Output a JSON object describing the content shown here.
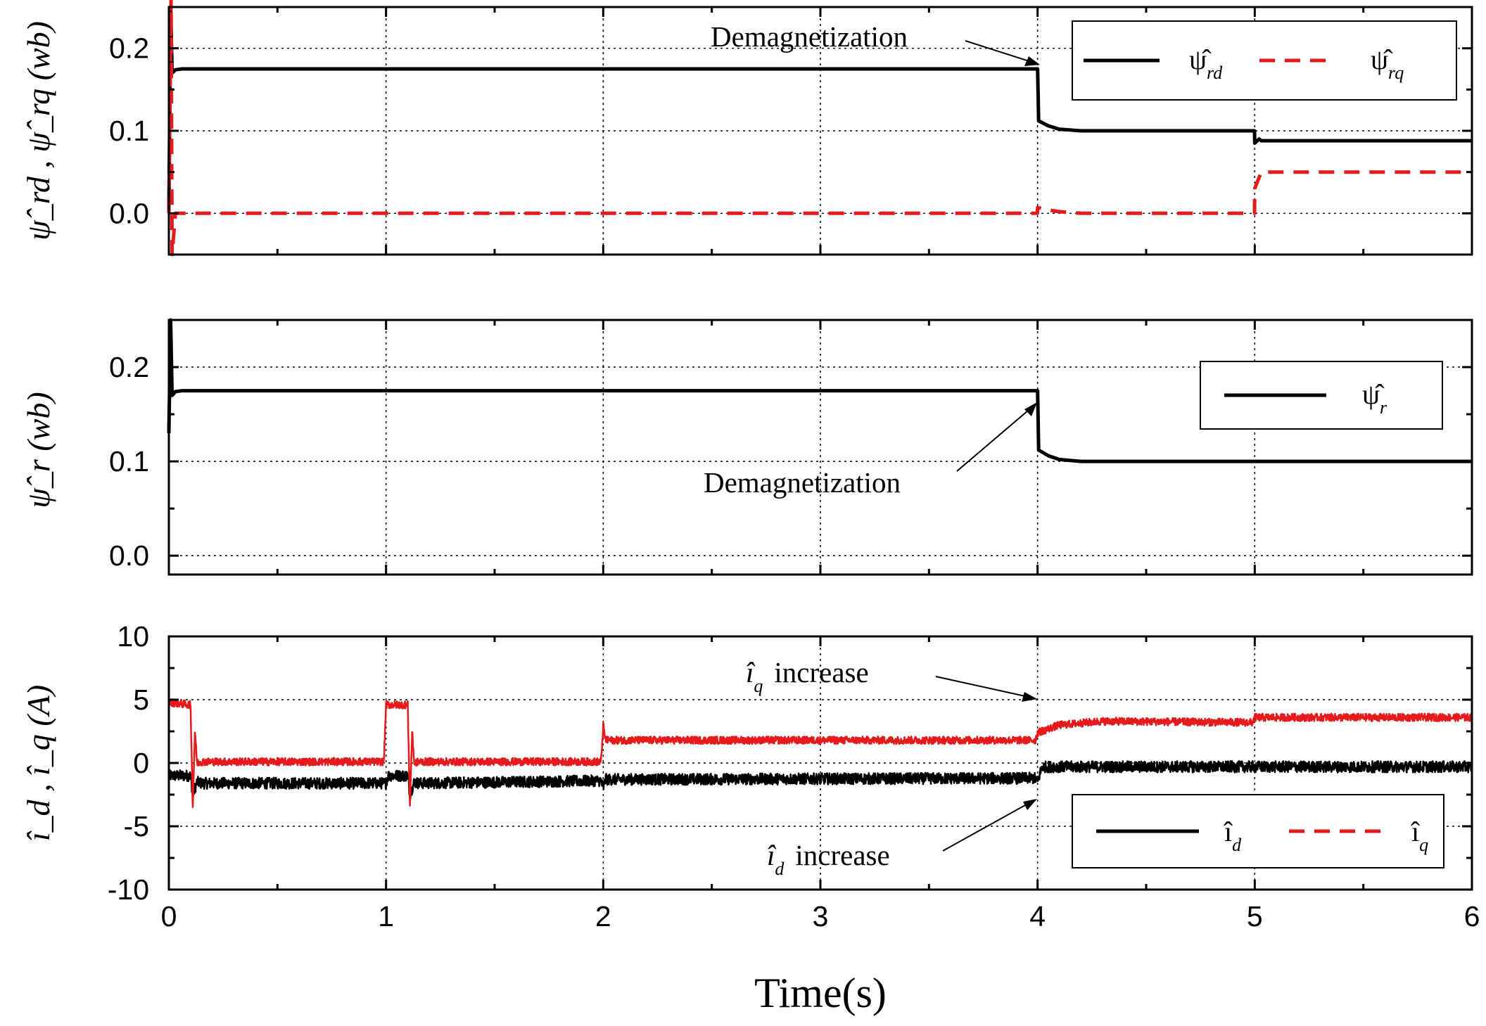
{
  "colors": {
    "black_series": "#000000",
    "red_series": "#e41a1c",
    "grid": "#000000"
  },
  "x_title": "Time(s)",
  "chart_data": [
    {
      "type": "line",
      "ylabel": "ψ̂_rd , ψ̂_rq (wb)",
      "xlim": [
        0,
        6
      ],
      "ylim": [
        -0.05,
        0.25
      ],
      "xticks": [
        0,
        1,
        2,
        3,
        4,
        5,
        6
      ],
      "yticks": [
        0.0,
        0.1,
        0.2
      ],
      "ytick_labels": [
        "0.0",
        "0.1",
        "0.2"
      ],
      "annotation": "Demagnetization",
      "legend_placement": "top-right",
      "series": [
        {
          "name": "ψ̂_rd",
          "legend_sym": "ψ̂",
          "legend_sub": "rd",
          "style": "solid",
          "color": "#000000",
          "x": [
            0,
            0.008,
            0.015,
            0.03,
            0.06,
            3.999,
            4.0,
            4.005,
            4.05,
            4.1,
            4.2,
            4.999,
            5.0,
            5.02,
            5.03,
            6.0
          ],
          "y": [
            0.0,
            0.25,
            0.17,
            0.174,
            0.175,
            0.175,
            0.175,
            0.112,
            0.106,
            0.102,
            0.1,
            0.1,
            0.085,
            0.09,
            0.088,
            0.088
          ]
        },
        {
          "name": "ψ̂_rq",
          "legend_sym": "ψ̂",
          "legend_sub": "rq",
          "style": "dashed",
          "color": "#e41a1c",
          "x": [
            0,
            0.01,
            0.015,
            0.03,
            0.06,
            3.999,
            4.0,
            4.05,
            4.1,
            4.2,
            4.999,
            5.0,
            5.03,
            6.0
          ],
          "y": [
            0.0,
            0.26,
            -0.05,
            0.0,
            0.0,
            0.0,
            0.007,
            0.004,
            0.002,
            0.0,
            0.0,
            0.03,
            0.05,
            0.05
          ]
        }
      ]
    },
    {
      "type": "line",
      "ylabel": "ψ̂_r (wb)",
      "xlim": [
        0,
        6
      ],
      "ylim": [
        -0.02,
        0.25
      ],
      "xticks": [
        0,
        1,
        2,
        3,
        4,
        5,
        6
      ],
      "yticks": [
        0.0,
        0.1,
        0.2
      ],
      "ytick_labels": [
        "0.0",
        "0.1",
        "0.2"
      ],
      "annotation": "Demagnetization",
      "legend_placement": "right",
      "series": [
        {
          "name": "ψ̂_r",
          "legend_sym": "ψ̂",
          "legend_sub": "r",
          "style": "solid",
          "color": "#000000",
          "x": [
            0,
            0.008,
            0.015,
            0.03,
            0.06,
            3.999,
            4.0,
            4.005,
            4.05,
            4.1,
            4.2,
            6.0
          ],
          "y": [
            0.13,
            0.25,
            0.17,
            0.174,
            0.175,
            0.175,
            0.175,
            0.112,
            0.106,
            0.102,
            0.1,
            0.1
          ]
        }
      ]
    },
    {
      "type": "line",
      "ylabel": "î_d , î_q (A)",
      "xlim": [
        0,
        6
      ],
      "ylim": [
        -10,
        10
      ],
      "xticks": [
        0,
        1,
        2,
        3,
        4,
        5,
        6
      ],
      "xtick_labels": [
        "0",
        "1",
        "2",
        "3",
        "4",
        "5",
        "6"
      ],
      "yticks": [
        -10,
        -5,
        0,
        5,
        10
      ],
      "ytick_labels": [
        "-10",
        "-5",
        "0",
        "5",
        "10"
      ],
      "annotations": [
        {
          "sym": "î",
          "sub": "q",
          "text": "increase"
        },
        {
          "sym": "î",
          "sub": "d",
          "text": "increase"
        }
      ],
      "legend_placement": "bottom-right",
      "series": [
        {
          "name": "î_d",
          "legend_sym": "î",
          "legend_sub": "d",
          "style": "solid",
          "color": "#000000",
          "x": [
            0,
            0.1,
            0.11,
            0.13,
            0.15,
            1.0,
            1.01,
            1.1,
            1.11,
            1.13,
            1.15,
            1.99,
            2.0,
            2.01,
            3.99,
            4.0,
            4.02,
            6.0
          ],
          "y": [
            -1.0,
            -1.0,
            -2.5,
            -1.5,
            -1.6,
            -1.6,
            -1.0,
            -1.0,
            -2.5,
            -1.5,
            -1.6,
            -1.4,
            -2.0,
            -1.3,
            -1.2,
            -1.5,
            -0.3,
            -0.3
          ],
          "noise": 0.45
        },
        {
          "name": "î_q",
          "legend_sym": "î",
          "legend_sub": "q",
          "style": "dashed",
          "color": "#e41a1c",
          "x": [
            0,
            0.1,
            0.11,
            0.12,
            0.13,
            0.15,
            0.99,
            1.0,
            1.1,
            1.11,
            1.12,
            1.13,
            1.15,
            1.99,
            2.0,
            2.01,
            3.99,
            4.0,
            4.1,
            4.3,
            4.99,
            5.0,
            6.0
          ],
          "y": [
            4.8,
            4.6,
            -3.5,
            2.5,
            0.0,
            0.1,
            0.1,
            4.6,
            4.6,
            -3.5,
            2.5,
            0.0,
            0.1,
            0.1,
            3.0,
            1.8,
            1.8,
            2.4,
            3.0,
            3.3,
            3.2,
            3.6,
            3.6
          ],
          "noise": 0.3
        }
      ]
    }
  ]
}
